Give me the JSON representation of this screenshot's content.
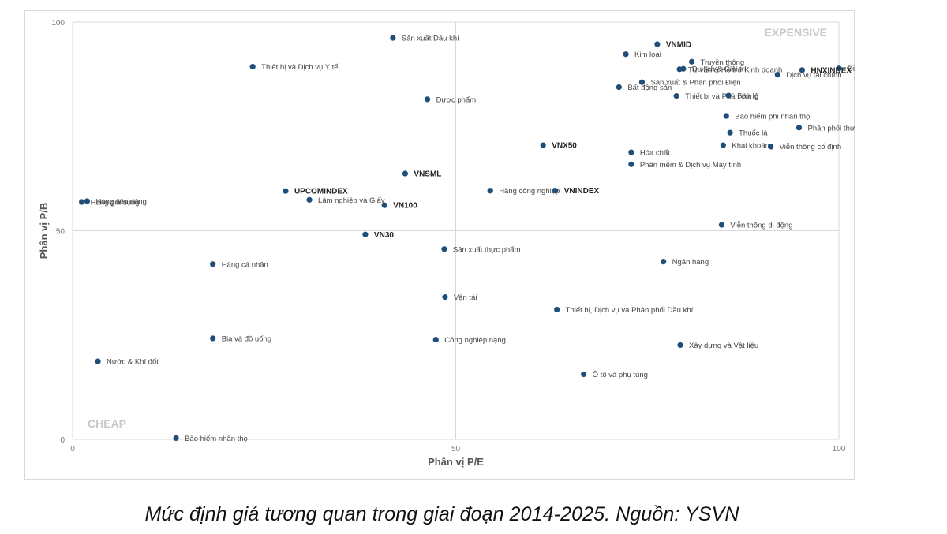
{
  "caption": "Mức định giá tương quan trong giai đoạn 2014-2025. Nguồn: YSVN",
  "chart_data": {
    "type": "scatter",
    "title": "",
    "xlabel": "Phân vị P/E",
    "ylabel": "Phân vị P/B",
    "xlim": [
      0,
      100
    ],
    "ylim": [
      0,
      100
    ],
    "xticks": [
      "0",
      "50",
      "100"
    ],
    "yticks": [
      "0",
      "50",
      "100"
    ],
    "grid": "midlines",
    "quadrant_labels": {
      "top_right": "EXPENSIVE",
      "bottom_left": "CHEAP"
    },
    "colors": {
      "point": "#1f4e79",
      "label": "#444444",
      "axis_title": "#555555",
      "quadrant": "#c8c8c8",
      "grid": "#d9d9d9"
    },
    "points": [
      {
        "name": "Sản xuất Dầu khí",
        "x": 41.8,
        "y": 96.2,
        "bold": false
      },
      {
        "name": "Thiết bị và Dịch vụ Y tế",
        "x": 23.5,
        "y": 89.3,
        "bold": false
      },
      {
        "name": "VNMID",
        "x": 76.3,
        "y": 94.7,
        "bold": true
      },
      {
        "name": "Kim loại",
        "x": 72.2,
        "y": 92.3,
        "bold": false
      },
      {
        "name": "Truyền thông",
        "x": 80.8,
        "y": 90.5,
        "bold": false
      },
      {
        "name": "Tư vấn & Hỗ trợ Kinh doanh",
        "x": 79.2,
        "y": 88.7,
        "bold": false
      },
      {
        "name": "Du lịch & Giải trí",
        "x": 79.7,
        "y": 88.8,
        "bold": false
      },
      {
        "name": "Điện tử & Thiết bị điện",
        "x": 100.0,
        "y": 88.9,
        "bold": false
      },
      {
        "name": "HNXINDEX",
        "x": 95.2,
        "y": 88.5,
        "bold": true
      },
      {
        "name": "Dịch vụ tài chính",
        "x": 92.0,
        "y": 87.4,
        "bold": false
      },
      {
        "name": "Sản xuất & Phân phối Điện",
        "x": 74.3,
        "y": 85.6,
        "bold": false
      },
      {
        "name": "Bất động sản",
        "x": 71.3,
        "y": 84.4,
        "bold": false
      },
      {
        "name": "Thiết bị và Phần cứng",
        "x": 78.8,
        "y": 82.3,
        "bold": false
      },
      {
        "name": "Bán lẻ",
        "x": 85.6,
        "y": 82.4,
        "bold": false
      },
      {
        "name": "Dược phẩm",
        "x": 46.3,
        "y": 81.5,
        "bold": false
      },
      {
        "name": "Bảo hiểm phi nhân thọ",
        "x": 85.3,
        "y": 77.5,
        "bold": false
      },
      {
        "name": "Phân phối thực phẩm & dược phẩm",
        "x": 94.8,
        "y": 74.7,
        "bold": false
      },
      {
        "name": "Thuốc lá",
        "x": 85.8,
        "y": 73.5,
        "bold": false
      },
      {
        "name": "VNX50",
        "x": 61.4,
        "y": 70.5,
        "bold": true
      },
      {
        "name": "Khai khoáng",
        "x": 84.9,
        "y": 70.5,
        "bold": false
      },
      {
        "name": "Viễn thông cố định",
        "x": 91.1,
        "y": 70.2,
        "bold": false
      },
      {
        "name": "Hóa chất",
        "x": 72.9,
        "y": 68.8,
        "bold": false
      },
      {
        "name": "Phần mềm & Dịch vụ Máy tính",
        "x": 72.9,
        "y": 65.9,
        "bold": false
      },
      {
        "name": "VNSML",
        "x": 43.4,
        "y": 63.7,
        "bold": true
      },
      {
        "name": "UPCOMINDEX",
        "x": 27.8,
        "y": 59.5,
        "bold": true
      },
      {
        "name": "Hàng công nghiệp",
        "x": 54.5,
        "y": 59.6,
        "bold": false
      },
      {
        "name": "VNINDEX",
        "x": 63.0,
        "y": 59.6,
        "bold": true
      },
      {
        "name": "Lâm nghiệp và Giấy",
        "x": 30.9,
        "y": 57.4,
        "bold": false
      },
      {
        "name": "VN100",
        "x": 40.7,
        "y": 56.1,
        "bold": true
      },
      {
        "name": "Hàng gia dụng",
        "x": 1.2,
        "y": 56.9,
        "bold": false
      },
      {
        "name": "Hàng tiêu dùng",
        "x": 1.9,
        "y": 57.1,
        "bold": false
      },
      {
        "name": "Viễn thông di động",
        "x": 84.7,
        "y": 51.4,
        "bold": false
      },
      {
        "name": "VN30",
        "x": 38.2,
        "y": 49.1,
        "bold": true
      },
      {
        "name": "Sản xuất thực phẩm",
        "x": 48.5,
        "y": 45.6,
        "bold": false
      },
      {
        "name": "Ngân hàng",
        "x": 77.1,
        "y": 42.6,
        "bold": false
      },
      {
        "name": "Hàng cá nhân",
        "x": 18.3,
        "y": 42.0,
        "bold": false
      },
      {
        "name": "Vận tải",
        "x": 48.6,
        "y": 34.1,
        "bold": false
      },
      {
        "name": "Thiết bị, Dịch vụ và Phân phối Dầu khí",
        "x": 63.2,
        "y": 31.1,
        "bold": false
      },
      {
        "name": "Công nghiệp nặng",
        "x": 47.4,
        "y": 23.9,
        "bold": false
      },
      {
        "name": "Xây dựng và Vật liệu",
        "x": 79.3,
        "y": 22.6,
        "bold": false
      },
      {
        "name": "Bia và đồ uống",
        "x": 18.3,
        "y": 24.2,
        "bold": false
      },
      {
        "name": "Nước & Khí đốt",
        "x": 3.3,
        "y": 18.7,
        "bold": false
      },
      {
        "name": "Ô tô và phụ tùng",
        "x": 66.7,
        "y": 15.6,
        "bold": false
      },
      {
        "name": "Bảo hiểm nhân thọ",
        "x": 13.5,
        "y": 0.3,
        "bold": false
      }
    ]
  }
}
